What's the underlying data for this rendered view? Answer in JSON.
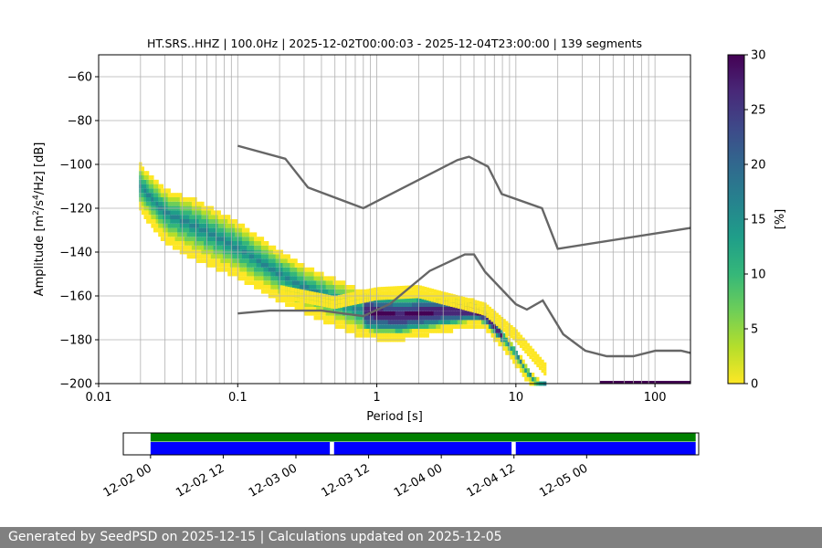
{
  "chart_data": {
    "type": "heatmap",
    "title": "HT.SRS..HHZ | 100.0Hz | 2025-12-02T00:00:03 - 2025-12-04T23:00:00 | 139 segments",
    "xlabel": "Period [s]",
    "ylabel_parts": [
      "Amplitude [m",
      "2",
      "/s",
      "4",
      "/Hz] [dB]"
    ],
    "x_scale": "log",
    "xlim": [
      0.01,
      180
    ],
    "ylim": [
      -200,
      -50
    ],
    "x_ticks": [
      {
        "value": 0.01,
        "label": "0.01"
      },
      {
        "value": 0.1,
        "label": "0.1"
      },
      {
        "value": 1,
        "label": "1"
      },
      {
        "value": 10,
        "label": "10"
      },
      {
        "value": 100,
        "label": "100"
      }
    ],
    "y_ticks": [
      -60,
      -80,
      -100,
      -120,
      -140,
      -160,
      -180,
      -200
    ],
    "y_tick_labels": [
      "−60",
      "−80",
      "−100",
      "−120",
      "−140",
      "−160",
      "−180",
      "−200"
    ],
    "grid": true,
    "colorbar": {
      "label": "[%]",
      "min": 0,
      "max": 30,
      "ticks": [
        0,
        5,
        10,
        15,
        20,
        25,
        30
      ],
      "colormap": "viridis_r",
      "colors": [
        "#fde725",
        "#b5de2b",
        "#6ece58",
        "#35b779",
        "#1f9e89",
        "#26828e",
        "#31688e",
        "#3e4989",
        "#482878",
        "#440154"
      ]
    },
    "noise_model_color": "#666666",
    "high_noise_model": [
      [
        0.1,
        -91.5
      ],
      [
        0.22,
        -97.4
      ],
      [
        0.32,
        -110.5
      ],
      [
        0.8,
        -120
      ],
      [
        3.8,
        -98
      ],
      [
        4.6,
        -96.5
      ],
      [
        6.3,
        -101
      ],
      [
        7.9,
        -113.5
      ],
      [
        15.4,
        -120
      ],
      [
        20,
        -138.5
      ],
      [
        180,
        -129
      ]
    ],
    "low_noise_model": [
      [
        0.1,
        -168
      ],
      [
        0.17,
        -166.7
      ],
      [
        0.4,
        -166.7
      ],
      [
        0.8,
        -169.2
      ],
      [
        1.24,
        -163.7
      ],
      [
        2.4,
        -148.6
      ],
      [
        4.3,
        -141.1
      ],
      [
        5,
        -141.1
      ],
      [
        6,
        -149
      ],
      [
        10,
        -163.8
      ],
      [
        12,
        -166.2
      ],
      [
        15.6,
        -162.1
      ],
      [
        21.9,
        -177.5
      ],
      [
        31.6,
        -185
      ],
      [
        45,
        -187.5
      ],
      [
        70,
        -187.5
      ],
      [
        101,
        -185
      ],
      [
        154,
        -185
      ],
      [
        180,
        -186
      ]
    ],
    "psd_median_curve": [
      [
        0.02,
        -110
      ],
      [
        0.03,
        -122
      ],
      [
        0.05,
        -128
      ],
      [
        0.1,
        -138
      ],
      [
        0.2,
        -150
      ],
      [
        0.3,
        -156
      ],
      [
        0.5,
        -162
      ],
      [
        0.7,
        -166
      ],
      [
        1,
        -168
      ],
      [
        1.5,
        -169
      ],
      [
        2,
        -168
      ],
      [
        3,
        -167
      ],
      [
        4,
        -167
      ],
      [
        5,
        -167
      ],
      [
        6,
        -169
      ],
      [
        8,
        -178
      ],
      [
        10,
        -186
      ],
      [
        12,
        -194
      ],
      [
        14,
        -199
      ],
      [
        16,
        -200
      ]
    ],
    "psd_spread_lower_db": [
      [
        0.02,
        10
      ],
      [
        0.05,
        14
      ],
      [
        0.1,
        12
      ],
      [
        0.3,
        10
      ],
      [
        1,
        10
      ],
      [
        3,
        8
      ],
      [
        6,
        4
      ],
      [
        10,
        4
      ],
      [
        16,
        2
      ]
    ],
    "psd_spread_upper_db": [
      [
        0.02,
        10
      ],
      [
        0.05,
        12
      ],
      [
        0.1,
        12
      ],
      [
        0.3,
        10
      ],
      [
        1,
        10
      ],
      [
        3,
        8
      ],
      [
        6,
        4
      ],
      [
        10,
        2
      ],
      [
        16,
        1
      ]
    ],
    "psd_secondary_branch": [
      [
        0.2,
        -158
      ],
      [
        0.5,
        -163
      ],
      [
        1,
        -159
      ],
      [
        2,
        -158
      ],
      [
        3,
        -161
      ],
      [
        4,
        -163
      ],
      [
        6,
        -166
      ],
      [
        10,
        -178
      ],
      [
        20,
        -200
      ]
    ],
    "psd_high_density_band": [
      0.8,
      8
    ],
    "psd_floor_segment": {
      "x_start": 40,
      "x_end": 180,
      "y": -200
    },
    "availability": {
      "time_ticks": [
        "12-02 00",
        "12-02 12",
        "12-03 00",
        "12-03 12",
        "12-04 00",
        "12-04 12",
        "12-05 00"
      ],
      "time_range_hours": [
        -4.5,
        90.5
      ],
      "data_span_hours": [
        0,
        90
      ],
      "data_color": "#008000",
      "gap_color": "#0000ff",
      "segments_hours": [
        [
          0,
          29.6
        ],
        [
          30.3,
          59.6
        ],
        [
          60.3,
          90
        ]
      ]
    }
  },
  "footer": {
    "text": "Generated by SeedPSD on 2025-12-15 | Calculations updated on 2025-12-05"
  }
}
